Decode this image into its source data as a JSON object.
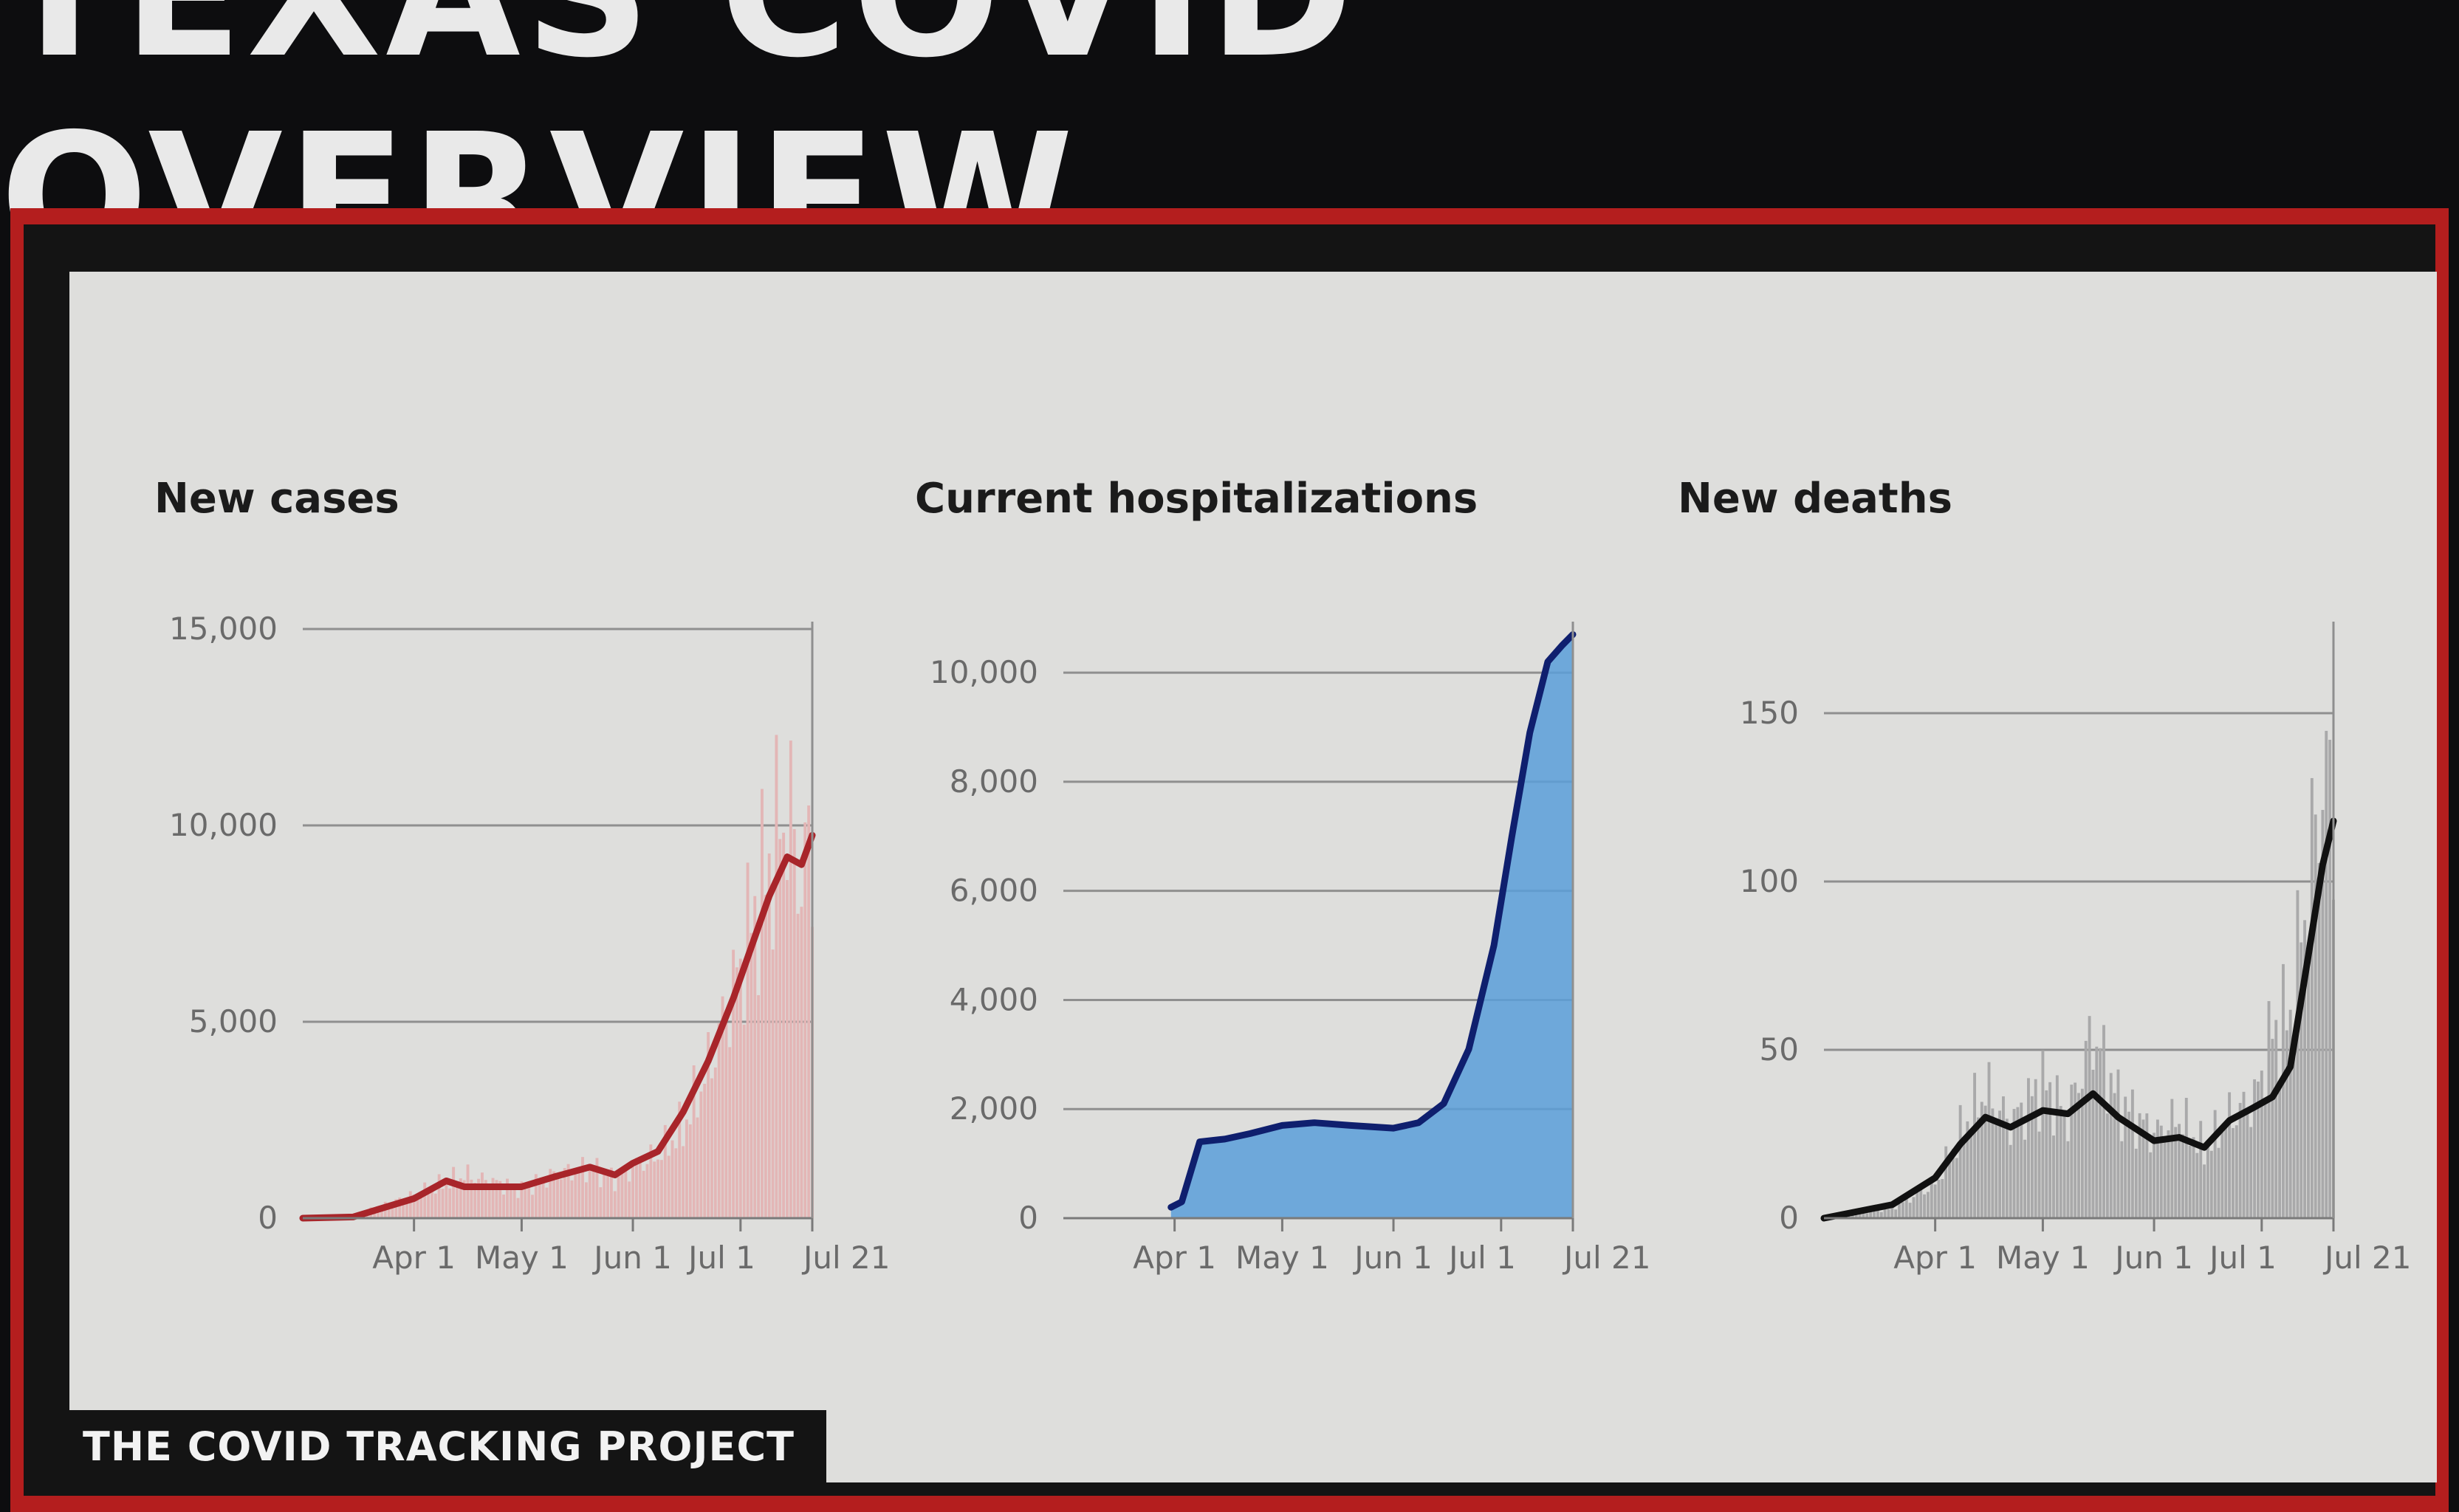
{
  "page": {
    "title": "TEXAS COVID OVERVIEW",
    "footer": "THE COVID TRACKING PROJECT",
    "frame_color": "#b41e1e"
  },
  "chart_data": [
    {
      "type": "bar",
      "title": "New cases",
      "xlabel": "",
      "ylabel": "",
      "ylim": [
        0,
        15000
      ],
      "yticks": [
        {
          "value": 0,
          "label": "0"
        },
        {
          "value": 5000,
          "label": "5,000"
        },
        {
          "value": 10000,
          "label": "10,000"
        },
        {
          "value": 15000,
          "label": "15,000"
        }
      ],
      "xticks": [
        "Apr 1",
        "May 1",
        "Jun 1",
        "Jul 1",
        "Jul 21"
      ],
      "bar_color": "#e3b6b6",
      "line_color": "#a8252a",
      "x_dates": [
        "Mar 1",
        "Mar 15",
        "Apr 1",
        "Apr 10",
        "Apr 15",
        "May 1",
        "May 10",
        "May 20",
        "May 27",
        "Jun 1",
        "Jun 8",
        "Jun 15",
        "Jun 22",
        "Jun 29",
        "Jul 4",
        "Jul 9",
        "Jul 14",
        "Jul 18",
        "Jul 21"
      ],
      "daily_values": [
        0,
        50,
        600,
        900,
        1100,
        750,
        1100,
        1300,
        1000,
        1300,
        1600,
        2300,
        3800,
        5800,
        7500,
        9000,
        10500,
        8500,
        9800
      ],
      "avg_values": [
        0,
        30,
        500,
        950,
        800,
        800,
        1050,
        1300,
        1100,
        1400,
        1700,
        2700,
        4000,
        5600,
        6900,
        8200,
        9200,
        9000,
        9750
      ]
    },
    {
      "type": "area",
      "title": "Current hospitalizations",
      "xlabel": "",
      "ylabel": "",
      "ylim": [
        0,
        10800
      ],
      "yticks": [
        {
          "value": 0,
          "label": "0"
        },
        {
          "value": 2000,
          "label": "2,000"
        },
        {
          "value": 4000,
          "label": "4,000"
        },
        {
          "value": 6000,
          "label": "6,000"
        },
        {
          "value": 8000,
          "label": "8,000"
        },
        {
          "value": 10000,
          "label": "10,000"
        }
      ],
      "xticks": [
        "Apr 1",
        "May 1",
        "Jun 1",
        "Jul 1",
        "Jul 21"
      ],
      "area_color": "#5a9fd9",
      "line_color": "#0f1f6e",
      "x_dates": [
        "Mar 31",
        "Apr 3",
        "Apr 8",
        "Apr 15",
        "Apr 22",
        "May 1",
        "May 10",
        "May 20",
        "Jun 1",
        "Jun 8",
        "Jun 15",
        "Jun 22",
        "Jun 29",
        "Jul 4",
        "Jul 9",
        "Jul 14",
        "Jul 18",
        "Jul 21"
      ],
      "values": [
        200,
        300,
        1400,
        1450,
        1550,
        1700,
        1750,
        1700,
        1650,
        1750,
        2100,
        3100,
        5000,
        7000,
        8900,
        10200,
        10500,
        10700
      ]
    },
    {
      "type": "bar",
      "title": "New deaths",
      "xlabel": "",
      "ylabel": "",
      "ylim": [
        0,
        175
      ],
      "yticks": [
        {
          "value": 0,
          "label": "0"
        },
        {
          "value": 50,
          "label": "50"
        },
        {
          "value": 100,
          "label": "100"
        },
        {
          "value": 150,
          "label": "150"
        }
      ],
      "xticks": [
        "Apr 1",
        "May 1",
        "Jun 1",
        "Jul 1",
        "Jul 21"
      ],
      "bar_color": "#a9a9aa",
      "line_color": "#111111",
      "x_dates": [
        "Mar 1",
        "Mar 20",
        "Apr 1",
        "Apr 8",
        "Apr 15",
        "Apr 22",
        "May 1",
        "May 8",
        "May 15",
        "May 22",
        "Jun 1",
        "Jun 8",
        "Jun 15",
        "Jun 22",
        "Jun 29",
        "Jul 4",
        "Jul 9",
        "Jul 14",
        "Jul 18",
        "Jul 21"
      ],
      "daily_values": [
        0,
        3,
        10,
        25,
        38,
        28,
        40,
        30,
        55,
        35,
        25,
        30,
        20,
        30,
        35,
        55,
        60,
        100,
        130,
        125
      ],
      "avg_values": [
        0,
        4,
        12,
        22,
        30,
        27,
        32,
        31,
        37,
        30,
        23,
        24,
        21,
        29,
        33,
        36,
        45,
        78,
        105,
        118
      ]
    }
  ]
}
